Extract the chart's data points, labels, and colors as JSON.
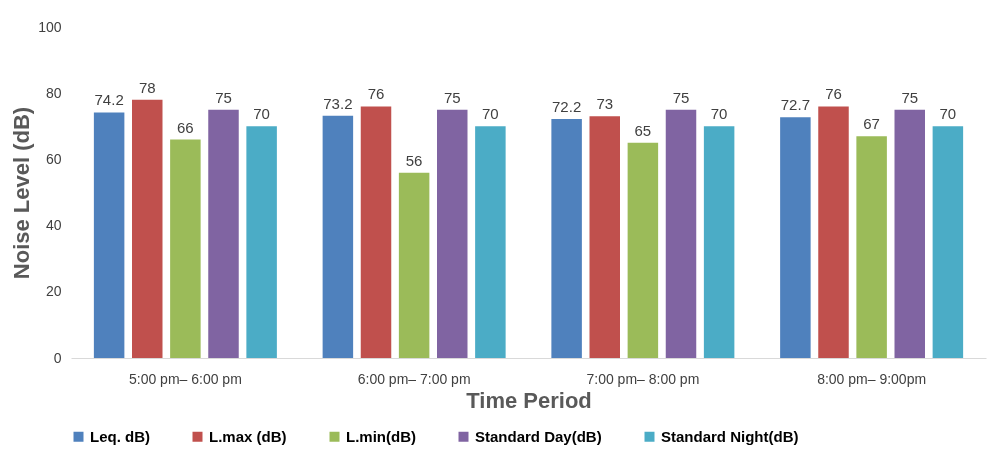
{
  "chart_data": {
    "type": "bar",
    "xlabel": "Time Period",
    "ylabel": "Noise Level (dB)",
    "categories": [
      "5:00 pm– 6:00 pm",
      "6:00 pm– 7:00 pm",
      "7:00 pm– 8:00 pm",
      "8:00 pm– 9:00pm"
    ],
    "series": [
      {
        "name": "Leq. dB)",
        "color": "#4f81bd",
        "values": [
          74.2,
          73.2,
          72.2,
          72.7
        ]
      },
      {
        "name": "L.max (dB)",
        "color": "#c0504d",
        "values": [
          78,
          76,
          73,
          76
        ]
      },
      {
        "name": "L.min(dB)",
        "color": "#9bbb59",
        "values": [
          66,
          56,
          65,
          67
        ]
      },
      {
        "name": "Standard Day(dB)",
        "color": "#8064a2",
        "values": [
          75,
          75,
          75,
          75
        ]
      },
      {
        "name": "Standard Night(dB)",
        "color": "#4bacc6",
        "values": [
          70,
          70,
          70,
          70
        ]
      }
    ],
    "ylim": [
      0,
      100
    ],
    "yticks": [
      0,
      20,
      40,
      60,
      80,
      100
    ],
    "grid": false,
    "legend": "bottom",
    "data_labels": true
  }
}
